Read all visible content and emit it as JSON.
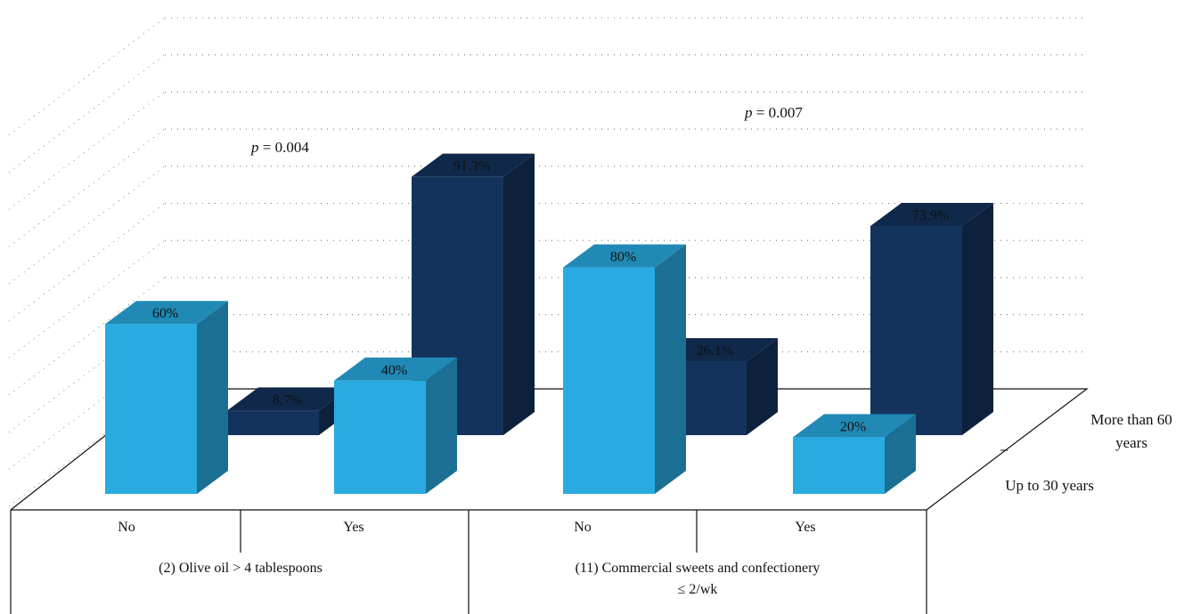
{
  "chart_data": {
    "type": "bar",
    "three_d": true,
    "ylim": [
      0,
      100
    ],
    "grid": true,
    "groups": [
      {
        "label": "(2) Olive oil > 4 tablespoons",
        "categories": [
          "No",
          "Yes"
        ],
        "p_value": {
          "prefix": "p",
          "text": " = 0.004"
        }
      },
      {
        "label_lines": [
          "(11) Commercial sweets and confectionery",
          "≤ 2/wk"
        ],
        "categories": [
          "No",
          "Yes"
        ],
        "p_value": {
          "prefix": "p",
          "text": " = 0.007"
        }
      }
    ],
    "series": [
      {
        "name": "Up to 30 years",
        "color": "#29ABE2",
        "values": [
          60,
          40,
          80,
          20
        ],
        "labels": [
          "60%",
          "40%",
          "80%",
          "20%"
        ]
      },
      {
        "name": "More than 60 years",
        "name_lines": [
          "More than 60",
          "years"
        ],
        "color": "#14335C",
        "values": [
          8.7,
          91.3,
          26.1,
          73.9
        ],
        "labels": [
          "8.7%",
          "91.3%",
          "26.1%",
          "73.9%"
        ]
      }
    ]
  }
}
